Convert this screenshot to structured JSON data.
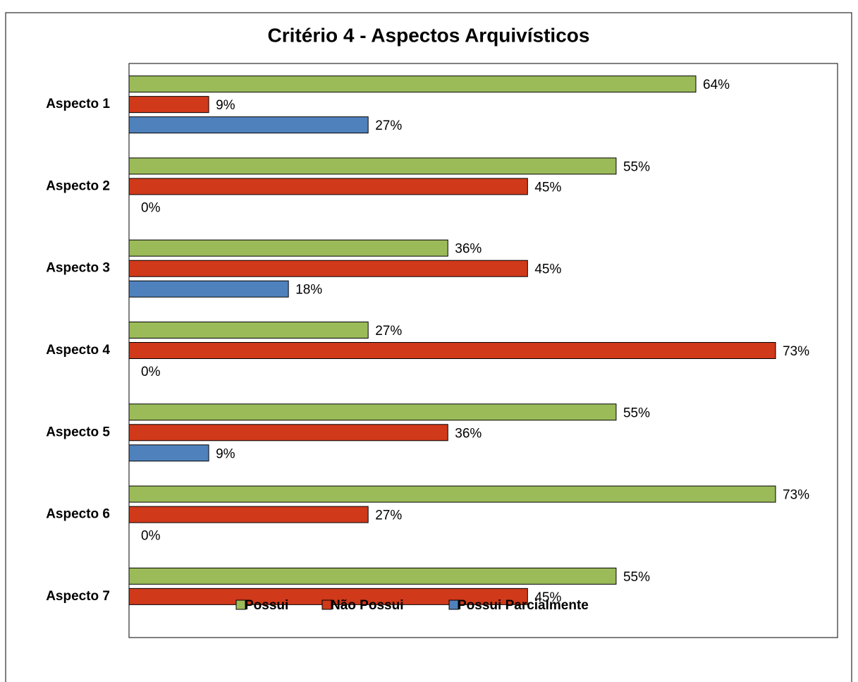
{
  "chart_data": {
    "type": "hbar",
    "title": "Critério 4 - Aspectos Arquivísticos",
    "categories": [
      "Aspecto 1",
      "Aspecto 2",
      "Aspecto 3",
      "Aspecto 4",
      "Aspecto 5",
      "Aspecto 6",
      "Aspecto 7"
    ],
    "series": [
      {
        "name": "Possui",
        "color": "#9bbb59",
        "values": [
          64,
          55,
          36,
          27,
          55,
          73,
          55
        ],
        "value_labels": [
          "64%",
          "55%",
          "36%",
          "27%",
          "55%",
          "73%",
          "55%"
        ]
      },
      {
        "name": "Não Possui",
        "color": "#d0391a",
        "values": [
          9,
          45,
          45,
          73,
          36,
          27,
          45
        ],
        "value_labels": [
          "9%",
          "45%",
          "45%",
          "73%",
          "36%",
          "27%",
          "45%"
        ]
      },
      {
        "name": "Possui Parcialmente",
        "color": "#4f81bd",
        "values": [
          27,
          0,
          18,
          0,
          9,
          0,
          null
        ],
        "value_labels": [
          "27%",
          "0%",
          "18%",
          "0%",
          "9%",
          "0%",
          null
        ]
      }
    ],
    "xlim": [
      0,
      80
    ],
    "legend": "bottom"
  }
}
